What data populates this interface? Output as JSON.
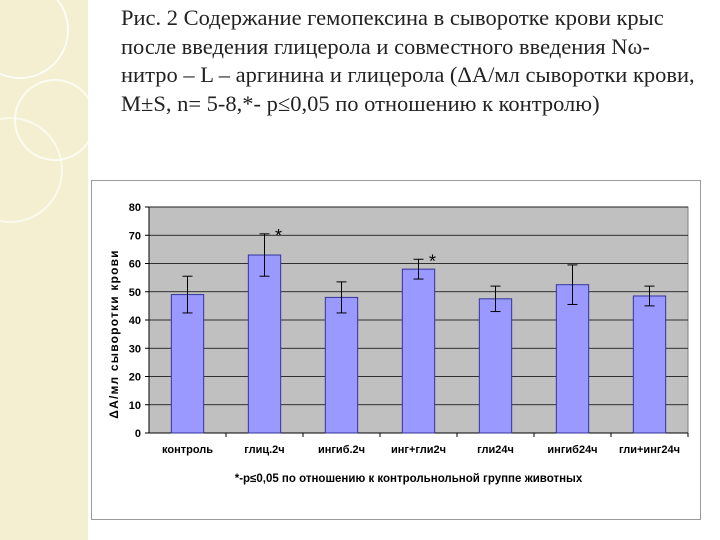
{
  "slide": {
    "title": "Рис. 2 Содержание гемопексина в сыворотке крови крыс после введения глицерола и совместного введения Nω- нитро – L – аргинина и глицерола (ΔА/мл сыворотки крови, M±S, n= 5-8,*- p≤0,05 по отношению к контролю)"
  },
  "colors": {
    "bar_fill": "#9999ff",
    "bar_stroke": "#333399",
    "plot_bg": "#c0c0c0",
    "side_panel": "#f3efd0"
  },
  "chart_data": {
    "type": "bar",
    "title": "",
    "xlabel": "*-p≤0,05 по отношению к контрольнольной группе животных",
    "ylabel": "ΔА/мл сыворотки крови",
    "ylim": [
      0,
      80
    ],
    "yticks": [
      0,
      10,
      20,
      30,
      40,
      50,
      60,
      70,
      80
    ],
    "grid": true,
    "legend": "none",
    "categories": [
      "контроль",
      "глиц.2ч",
      "ингиб.2ч",
      "инг+гли2ч",
      "гли24ч",
      "ингиб24ч",
      "гли+инг24ч"
    ],
    "values": [
      49,
      63,
      48,
      58,
      47.5,
      52.5,
      48.5
    ],
    "errors": [
      6.5,
      7.5,
      5.5,
      3.5,
      4.5,
      7,
      3.5
    ],
    "annotations": [
      "",
      "*",
      "",
      "*",
      "",
      "",
      ""
    ]
  }
}
